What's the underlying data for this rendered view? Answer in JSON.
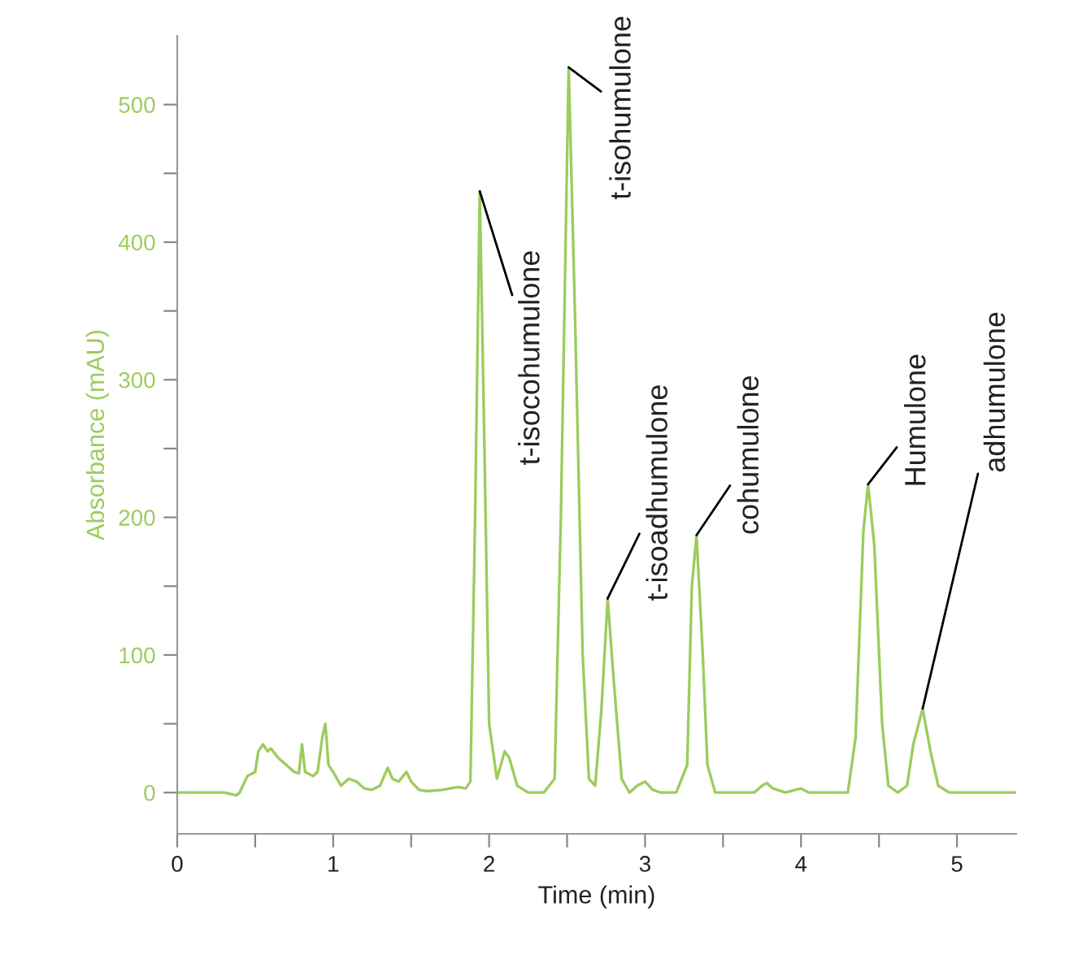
{
  "chart_data": {
    "type": "line",
    "xlabel": "Time (min)",
    "ylabel": "Absorbance (mAU)",
    "xlim": [
      0,
      5.38
    ],
    "ylim": [
      -30,
      550
    ],
    "xticks": [
      0,
      {
        "value": 0.5,
        "label": null
      },
      1,
      {
        "value": 1.5,
        "label": null
      },
      2,
      {
        "value": 2.5,
        "label": null
      },
      3,
      {
        "value": 3.5,
        "label": null
      },
      4,
      {
        "value": 4.5,
        "label": null
      },
      5
    ],
    "yticks": [
      0,
      {
        "value": 50,
        "label": null
      },
      100,
      {
        "value": 150,
        "label": null
      },
      200,
      {
        "value": 250,
        "label": null
      },
      300,
      {
        "value": 350,
        "label": null
      },
      400,
      {
        "value": 450,
        "label": null
      },
      500
    ],
    "grid": false,
    "legend": false,
    "marker": "none",
    "line_style": "solid",
    "series": [
      {
        "color": "#9ccc5c",
        "x": [
          0,
          0.3,
          0.38,
          0.4,
          0.45,
          0.5,
          0.52,
          0.55,
          0.58,
          0.6,
          0.65,
          0.7,
          0.75,
          0.78,
          0.8,
          0.82,
          0.87,
          0.9,
          0.93,
          0.95,
          0.97,
          1.0,
          1.05,
          1.1,
          1.15,
          1.2,
          1.25,
          1.3,
          1.35,
          1.38,
          1.42,
          1.47,
          1.5,
          1.55,
          1.6,
          1.7,
          1.8,
          1.85,
          1.88,
          1.91,
          1.94,
          1.97,
          2.0,
          2.05,
          2.1,
          2.13,
          2.18,
          2.25,
          2.35,
          2.42,
          2.46,
          2.51,
          2.55,
          2.6,
          2.64,
          2.68,
          2.72,
          2.76,
          2.8,
          2.85,
          2.9,
          2.95,
          3.0,
          3.05,
          3.1,
          3.2,
          3.27,
          3.3,
          3.33,
          3.37,
          3.4,
          3.45,
          3.7,
          3.75,
          3.78,
          3.82,
          3.9,
          4.0,
          4.05,
          4.3,
          4.35,
          4.4,
          4.43,
          4.47,
          4.52,
          4.56,
          4.62,
          4.68,
          4.72,
          4.78,
          4.83,
          4.88,
          4.95,
          5.38
        ],
        "values": [
          0,
          0,
          -2,
          0,
          12,
          15,
          30,
          35,
          30,
          32,
          25,
          20,
          15,
          14,
          35,
          15,
          12,
          15,
          40,
          50,
          20,
          15,
          5,
          10,
          8,
          3,
          2,
          5,
          18,
          10,
          8,
          15,
          8,
          2,
          1,
          2,
          4,
          3,
          8,
          200,
          437,
          250,
          50,
          10,
          30,
          25,
          5,
          0,
          0,
          10,
          200,
          527,
          350,
          100,
          10,
          5,
          60,
          141,
          80,
          10,
          0,
          5,
          8,
          2,
          0,
          0,
          20,
          150,
          187,
          100,
          20,
          0,
          0,
          5,
          7,
          3,
          0,
          3,
          0,
          0,
          40,
          190,
          224,
          180,
          50,
          5,
          0,
          5,
          35,
          61,
          30,
          5,
          0,
          0
        ]
      }
    ],
    "annotations": [
      {
        "text": "t-isocohumulone",
        "x": 1.94,
        "y": 437
      },
      {
        "text": "t-isohumulone",
        "x": 2.51,
        "y": 527
      },
      {
        "text": "t-isoadhumulone",
        "x": 2.76,
        "y": 141
      },
      {
        "text": "cohumulone",
        "x": 3.33,
        "y": 187
      },
      {
        "text": "Humulone",
        "x": 4.43,
        "y": 224
      },
      {
        "text": "adhumulone",
        "x": 4.78,
        "y": 61
      }
    ]
  }
}
